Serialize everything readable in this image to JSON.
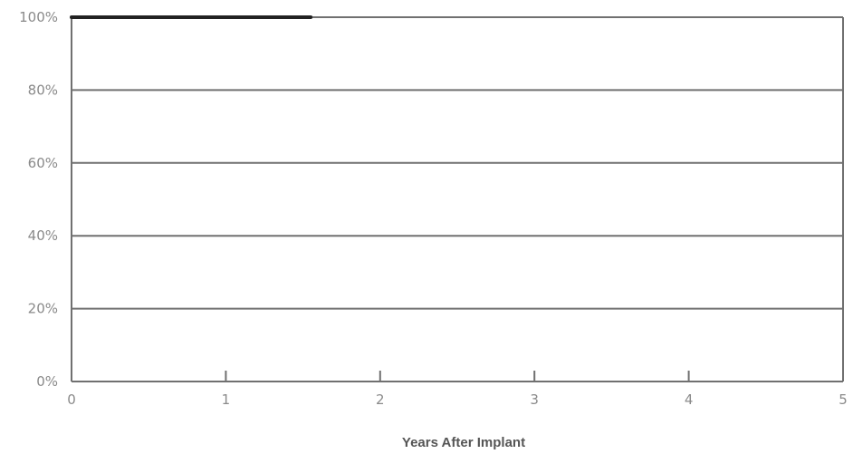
{
  "chart_data": {
    "type": "line",
    "title": "",
    "xlabel": "Years After Implant",
    "ylabel": "",
    "xlim": [
      0,
      5
    ],
    "ylim": [
      0,
      100
    ],
    "x_ticks": [
      0,
      1,
      2,
      3,
      4,
      5
    ],
    "y_ticks": [
      0,
      20,
      40,
      60,
      80,
      100
    ],
    "y_tick_labels": [
      "0%",
      "20%",
      "40%",
      "60%",
      "80%",
      "100%"
    ],
    "grid": true,
    "series": [
      {
        "x": [
          0,
          1.55
        ],
        "y": [
          100,
          100
        ]
      }
    ]
  },
  "colors": {
    "title": "#1a9a82",
    "line": "#222222",
    "grid": "#707070",
    "axis": "#707070",
    "tick_label": "#8a8a8a"
  }
}
